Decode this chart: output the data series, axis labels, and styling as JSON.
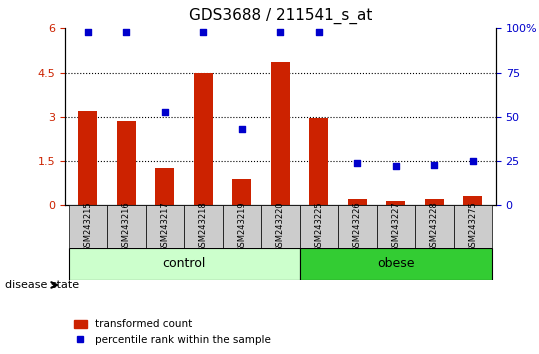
{
  "title": "GDS3688 / 211541_s_at",
  "samples": [
    "GSM243215",
    "GSM243216",
    "GSM243217",
    "GSM243218",
    "GSM243219",
    "GSM243220",
    "GSM243225",
    "GSM243226",
    "GSM243227",
    "GSM243228",
    "GSM243275"
  ],
  "transformed_count": [
    3.2,
    2.85,
    1.25,
    4.5,
    0.9,
    4.85,
    2.95,
    0.2,
    0.15,
    0.2,
    0.3
  ],
  "percentile_rank": [
    98,
    98,
    53,
    98,
    43,
    98,
    98,
    24,
    22,
    23,
    25
  ],
  "control_group": [
    "GSM243215",
    "GSM243216",
    "GSM243217",
    "GSM243218",
    "GSM243219",
    "GSM243220"
  ],
  "obese_group": [
    "GSM243225",
    "GSM243226",
    "GSM243227",
    "GSM243228",
    "GSM243275"
  ],
  "ylim_left": [
    0,
    6
  ],
  "ylim_right": [
    0,
    100
  ],
  "yticks_left": [
    0,
    1.5,
    3.0,
    4.5,
    6
  ],
  "ytick_labels_left": [
    "0",
    "1.5",
    "3",
    "4.5",
    "6"
  ],
  "yticks_right": [
    0,
    25,
    50,
    75,
    100
  ],
  "ytick_labels_right": [
    "0",
    "25",
    "50",
    "75",
    "100%"
  ],
  "bar_color": "#CC2200",
  "dot_color": "#0000CC",
  "control_bg": "#CCFFCC",
  "obese_bg": "#33CC33",
  "tick_area_bg": "#CCCCCC",
  "grid_color": "#000000",
  "legend_bar_label": "transformed count",
  "legend_dot_label": "percentile rank within the sample",
  "group_label_control": "control",
  "group_label_obese": "obese",
  "disease_state_label": "disease state"
}
